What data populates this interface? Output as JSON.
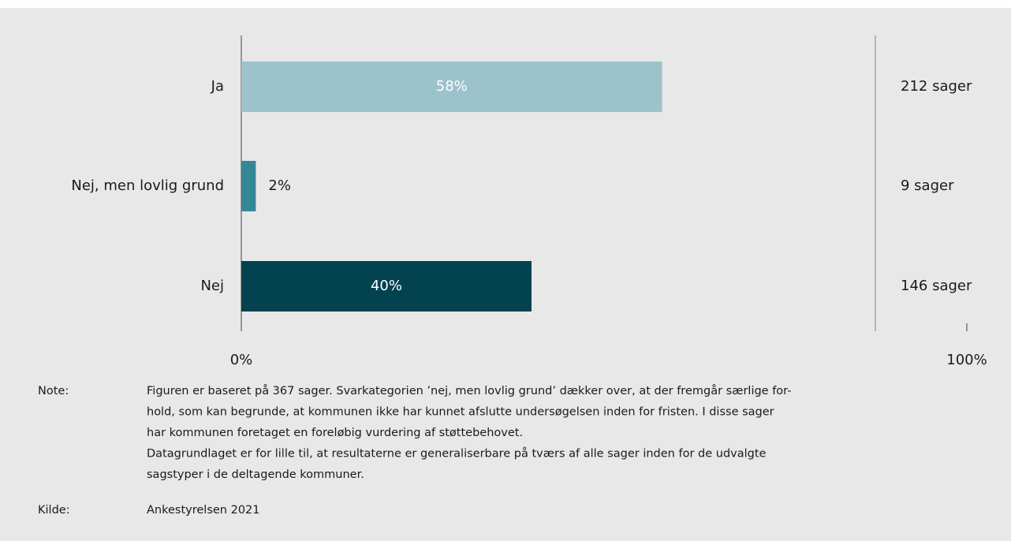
{
  "chart_data": {
    "type": "bar",
    "orientation": "horizontal",
    "categories": [
      "Ja",
      "Nej, men lovlig grund",
      "Nej"
    ],
    "values": [
      58,
      2,
      40
    ],
    "value_labels": [
      "58%",
      "2%",
      "40%"
    ],
    "count_labels": [
      "212 sager",
      "9 sager",
      "146 sager"
    ],
    "colors": [
      "#9cc2cb",
      "#348896",
      "#03424f"
    ],
    "xlim": [
      0,
      100
    ],
    "xticks": [
      {
        "value": 0,
        "label": "0%"
      },
      {
        "value": 100,
        "label": "100%"
      }
    ],
    "grid": false,
    "note_label": "Note:",
    "note_lines": [
      "Figuren er baseret på 367 sager. Svarkategorien ’nej, men lovlig grund’ dækker over, at der fremgår særlige for-",
      "hold, som kan begrunde, at kommunen ikke har kunnet afslutte undersøgelsen inden for fristen. I disse sager",
      "har kommunen foretaget en foreløbig vurdering af støttebehovet.",
      "Datagrundlaget er for lille til, at resultaterne er generaliserbare på tværs af alle sager inden for de udvalgte",
      "sagstyper i de deltagende kommuner."
    ],
    "source_label": "Kilde:",
    "source": "Ankestyrelsen 2021"
  }
}
